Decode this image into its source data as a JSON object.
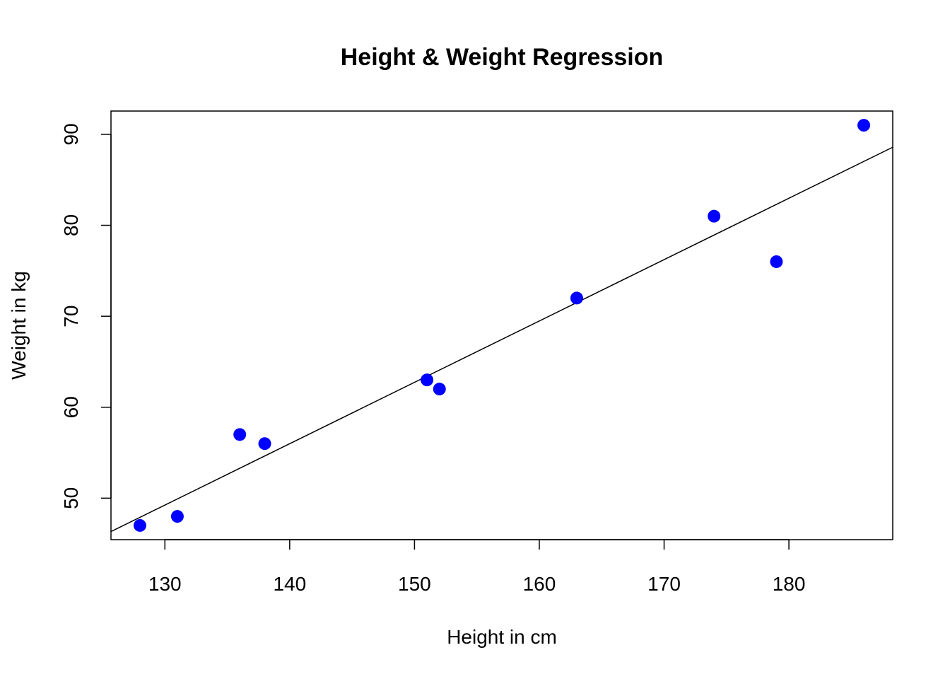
{
  "chart_data": {
    "type": "scatter",
    "title": "Height & Weight Regression",
    "xlabel": "Height in cm",
    "ylabel": "Weight in kg",
    "xlim": [
      125.68,
      188.32
    ],
    "ylim": [
      45.44,
      92.56
    ],
    "xticks": [
      130,
      140,
      150,
      160,
      170,
      180
    ],
    "yticks": [
      50,
      60,
      70,
      80,
      90
    ],
    "grid": false,
    "legend": "none",
    "point_color": "#0000ff",
    "line_color": "#000000",
    "series": [
      {
        "x": [
          128,
          131,
          136,
          138,
          151,
          152,
          163,
          174,
          179,
          186
        ],
        "y": [
          47,
          48,
          57,
          56,
          63,
          62,
          72,
          81,
          76,
          91
        ]
      }
    ],
    "regression": {
      "intercept": -38.455,
      "slope": 0.6746
    }
  }
}
